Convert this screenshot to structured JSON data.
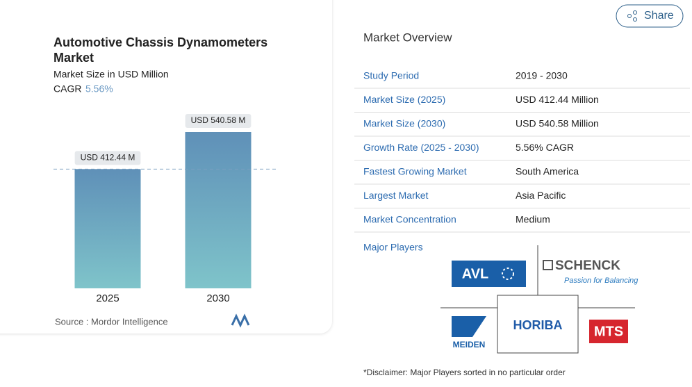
{
  "chart_data": {
    "type": "bar",
    "title": "Automotive Chassis Dynamometers Market",
    "subtitle": "Market Size in USD Million",
    "cagr_label": "CAGR",
    "cagr": "5.56%",
    "categories": [
      "2025",
      "2030"
    ],
    "values": [
      412.44,
      540.58
    ],
    "value_labels": [
      "USD 412.44 M",
      "USD 540.58 M"
    ],
    "source": "Source :  Mordor Intelligence"
  },
  "share": "Share",
  "overview": {
    "title": "Market Overview",
    "rows": [
      [
        "Study Period",
        "2019 - 2030"
      ],
      [
        "Market Size (2025)",
        "USD 412.44 Million"
      ],
      [
        "Market Size (2030)",
        "USD 540.58 Million"
      ],
      [
        "Growth Rate (2025 - 2030)",
        "5.56% CAGR"
      ],
      [
        "Fastest Growing Market",
        "South America"
      ],
      [
        "Largest Market",
        "Asia Pacific"
      ],
      [
        "Market Concentration",
        "Medium"
      ]
    ],
    "major_players_label": "Major Players",
    "players": {
      "avl": "AVL",
      "schenck": "SCHENCK",
      "schenck_tagline": "Passion for Balancing",
      "horiba": "HORIBA",
      "meiden": "MEIDEN",
      "mts": "MTS"
    },
    "disclaimer": "*Disclaimer: Major Players sorted in no particular order"
  }
}
